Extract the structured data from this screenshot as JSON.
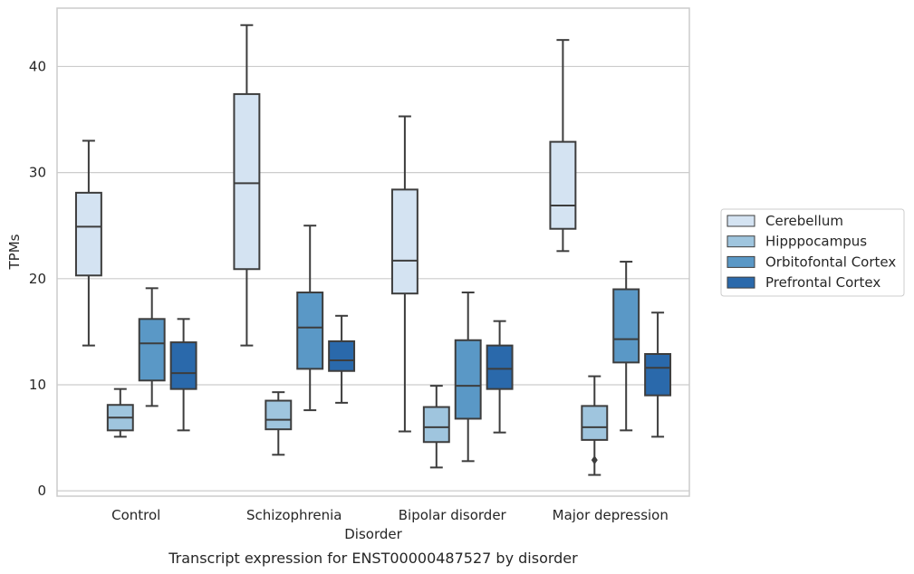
{
  "chart_data": {
    "type": "box",
    "caption": "Transcript expression for ENST00000487527 by disorder",
    "xlabel": "Disorder",
    "ylabel": "TPMs",
    "ylim": [
      -0.5,
      45.5
    ],
    "yticks": [
      0,
      10,
      20,
      30,
      40
    ],
    "grid": true,
    "legend_position": "right",
    "categories": [
      "Control",
      "Schizophrenia",
      "Bipolar disorder",
      "Major depression"
    ],
    "series": [
      {
        "name": "Cerebellum",
        "color": "#d4e3f2",
        "boxes": [
          {
            "whisker_low": 13.7,
            "q1": 20.3,
            "median": 24.9,
            "q3": 28.1,
            "whisker_high": 33.0,
            "outliers": []
          },
          {
            "whisker_low": 13.7,
            "q1": 20.9,
            "median": 29.0,
            "q3": 37.4,
            "whisker_high": 43.9,
            "outliers": []
          },
          {
            "whisker_low": 5.6,
            "q1": 18.6,
            "median": 21.7,
            "q3": 28.4,
            "whisker_high": 35.3,
            "outliers": []
          },
          {
            "whisker_low": 22.6,
            "q1": 24.7,
            "median": 26.9,
            "q3": 32.9,
            "whisker_high": 42.5,
            "outliers": []
          }
        ]
      },
      {
        "name": "Hipppocampus",
        "color": "#9fc5de",
        "boxes": [
          {
            "whisker_low": 5.1,
            "q1": 5.7,
            "median": 6.9,
            "q3": 8.1,
            "whisker_high": 9.6,
            "outliers": []
          },
          {
            "whisker_low": 3.4,
            "q1": 5.8,
            "median": 6.7,
            "q3": 8.5,
            "whisker_high": 9.3,
            "outliers": []
          },
          {
            "whisker_low": 2.2,
            "q1": 4.6,
            "median": 6.0,
            "q3": 7.9,
            "whisker_high": 9.9,
            "outliers": []
          },
          {
            "whisker_low": 1.5,
            "q1": 4.8,
            "median": 6.0,
            "q3": 8.0,
            "whisker_high": 10.8,
            "outliers": [
              2.9
            ]
          }
        ]
      },
      {
        "name": "Orbitofontal Cortex",
        "color": "#5a98c6",
        "boxes": [
          {
            "whisker_low": 8.0,
            "q1": 10.4,
            "median": 13.9,
            "q3": 16.2,
            "whisker_high": 19.1,
            "outliers": []
          },
          {
            "whisker_low": 7.6,
            "q1": 11.5,
            "median": 15.4,
            "q3": 18.7,
            "whisker_high": 25.0,
            "outliers": []
          },
          {
            "whisker_low": 2.8,
            "q1": 6.8,
            "median": 9.9,
            "q3": 14.2,
            "whisker_high": 18.7,
            "outliers": []
          },
          {
            "whisker_low": 5.7,
            "q1": 12.1,
            "median": 14.3,
            "q3": 19.0,
            "whisker_high": 21.6,
            "outliers": []
          }
        ]
      },
      {
        "name": "Prefrontal Cortex",
        "color": "#2a69ab",
        "boxes": [
          {
            "whisker_low": 5.7,
            "q1": 9.6,
            "median": 11.1,
            "q3": 14.0,
            "whisker_high": 16.2,
            "outliers": []
          },
          {
            "whisker_low": 8.3,
            "q1": 11.3,
            "median": 12.3,
            "q3": 14.1,
            "whisker_high": 16.5,
            "outliers": []
          },
          {
            "whisker_low": 5.5,
            "q1": 9.6,
            "median": 11.5,
            "q3": 13.7,
            "whisker_high": 16.0,
            "outliers": []
          },
          {
            "whisker_low": 5.1,
            "q1": 9.0,
            "median": 11.6,
            "q3": 12.9,
            "whisker_high": 16.8,
            "outliers": []
          }
        ]
      }
    ]
  }
}
